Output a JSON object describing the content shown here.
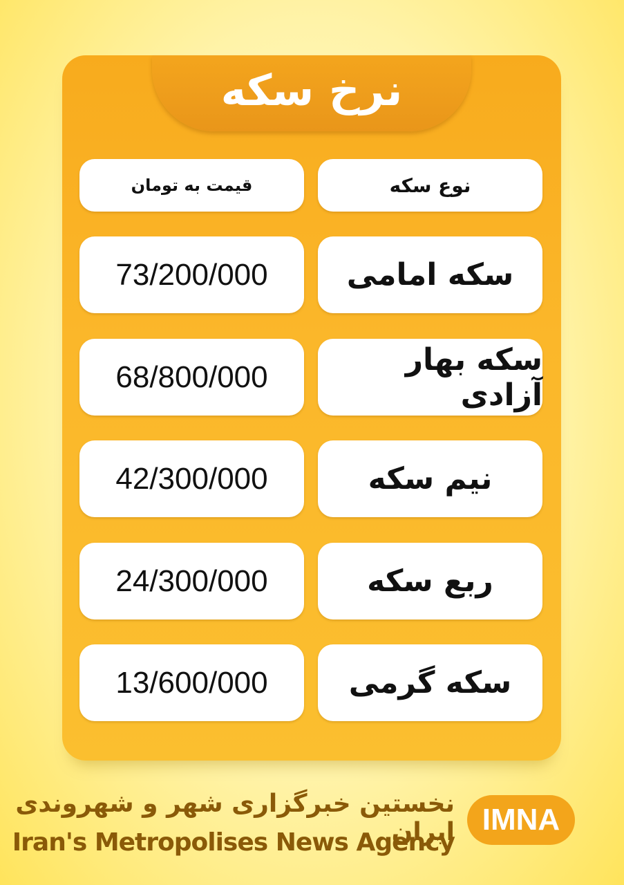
{
  "header": {
    "title": "نرخ سکه"
  },
  "table": {
    "headers": [
      "قیمت به تومان",
      "نوع سکه"
    ],
    "rows": [
      [
        "73/200/000",
        "سکه امامی"
      ],
      [
        "68/800/000",
        "سکه بهار آزادی"
      ],
      [
        "42/300/000",
        "نیم سکه"
      ],
      [
        "24/300/000",
        "ربع سکه"
      ],
      [
        "13/600/000",
        "سکه گرمی"
      ]
    ]
  },
  "footer": {
    "persian": "نخستین خبرگزاری شهر و شهروندی ایران",
    "english": "Iran's Metropolises News Agency",
    "logo": "IMNA"
  }
}
